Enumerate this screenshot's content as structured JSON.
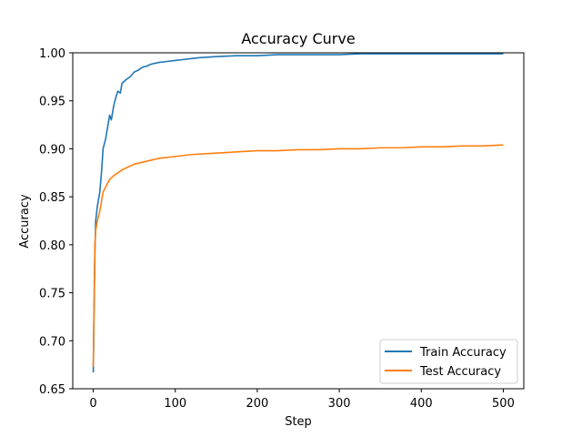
{
  "chart_data": {
    "type": "line",
    "title": "Accuracy Curve",
    "xlabel": "Step",
    "ylabel": "Accuracy",
    "xlim": [
      -25,
      525
    ],
    "ylim": [
      0.65,
      1.0
    ],
    "xticks": [
      0,
      100,
      200,
      300,
      400,
      500
    ],
    "xtick_labels": [
      "0",
      "100",
      "200",
      "300",
      "400",
      "500"
    ],
    "yticks": [
      0.65,
      0.7,
      0.75,
      0.8,
      0.85,
      0.9,
      0.95,
      1.0
    ],
    "ytick_labels": [
      "0.65",
      "0.70",
      "0.75",
      "0.80",
      "0.85",
      "0.90",
      "0.95",
      "1.00"
    ],
    "grid": false,
    "legend_position": "lower-right",
    "series": [
      {
        "name": "Train Accuracy",
        "color": "#1f77b4",
        "points": [
          [
            0,
            0.667
          ],
          [
            1,
            0.73
          ],
          [
            2,
            0.79
          ],
          [
            3,
            0.825
          ],
          [
            5,
            0.84
          ],
          [
            8,
            0.855
          ],
          [
            10,
            0.875
          ],
          [
            12,
            0.9
          ],
          [
            15,
            0.91
          ],
          [
            18,
            0.925
          ],
          [
            20,
            0.935
          ],
          [
            22,
            0.93
          ],
          [
            25,
            0.945
          ],
          [
            28,
            0.955
          ],
          [
            30,
            0.96
          ],
          [
            33,
            0.958
          ],
          [
            35,
            0.968
          ],
          [
            40,
            0.972
          ],
          [
            45,
            0.975
          ],
          [
            50,
            0.98
          ],
          [
            55,
            0.982
          ],
          [
            60,
            0.985
          ],
          [
            65,
            0.986
          ],
          [
            70,
            0.988
          ],
          [
            80,
            0.99
          ],
          [
            90,
            0.991
          ],
          [
            100,
            0.992
          ],
          [
            110,
            0.993
          ],
          [
            120,
            0.994
          ],
          [
            130,
            0.995
          ],
          [
            150,
            0.996
          ],
          [
            175,
            0.997
          ],
          [
            200,
            0.997
          ],
          [
            225,
            0.998
          ],
          [
            250,
            0.998
          ],
          [
            275,
            0.998
          ],
          [
            300,
            0.998
          ],
          [
            325,
            0.999
          ],
          [
            350,
            0.999
          ],
          [
            375,
            0.999
          ],
          [
            400,
            0.999
          ],
          [
            425,
            0.999
          ],
          [
            450,
            0.999
          ],
          [
            475,
            0.999
          ],
          [
            500,
            0.999
          ]
        ]
      },
      {
        "name": "Test Accuracy",
        "color": "#ff7f0e",
        "points": [
          [
            0,
            0.673
          ],
          [
            1,
            0.74
          ],
          [
            2,
            0.8
          ],
          [
            3,
            0.815
          ],
          [
            5,
            0.825
          ],
          [
            8,
            0.835
          ],
          [
            10,
            0.845
          ],
          [
            12,
            0.855
          ],
          [
            15,
            0.86
          ],
          [
            18,
            0.865
          ],
          [
            20,
            0.868
          ],
          [
            25,
            0.872
          ],
          [
            30,
            0.875
          ],
          [
            35,
            0.878
          ],
          [
            40,
            0.88
          ],
          [
            50,
            0.884
          ],
          [
            60,
            0.886
          ],
          [
            70,
            0.888
          ],
          [
            80,
            0.89
          ],
          [
            100,
            0.892
          ],
          [
            120,
            0.894
          ],
          [
            140,
            0.895
          ],
          [
            160,
            0.896
          ],
          [
            180,
            0.897
          ],
          [
            200,
            0.898
          ],
          [
            225,
            0.898
          ],
          [
            250,
            0.899
          ],
          [
            275,
            0.899
          ],
          [
            300,
            0.9
          ],
          [
            325,
            0.9
          ],
          [
            350,
            0.901
          ],
          [
            375,
            0.901
          ],
          [
            400,
            0.902
          ],
          [
            425,
            0.902
          ],
          [
            450,
            0.903
          ],
          [
            475,
            0.903
          ],
          [
            500,
            0.904
          ]
        ]
      }
    ]
  }
}
